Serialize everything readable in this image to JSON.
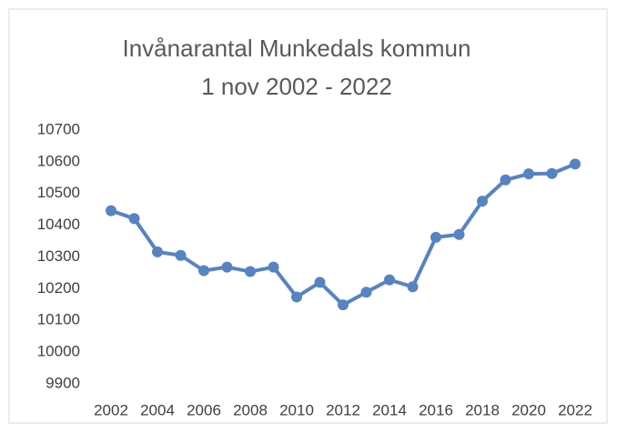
{
  "chart_data": {
    "type": "line",
    "title": [
      "Invånarantal  Munkedals kommun",
      "1 nov 2002 - 2022"
    ],
    "x": [
      2002,
      2003,
      2004,
      2005,
      2006,
      2007,
      2008,
      2009,
      2010,
      2011,
      2012,
      2013,
      2014,
      2015,
      2016,
      2017,
      2018,
      2019,
      2020,
      2021,
      2022
    ],
    "series": [
      {
        "color": "#5683c2",
        "values": [
          10446,
          10421,
          10316,
          10305,
          10257,
          10268,
          10254,
          10268,
          10174,
          10220,
          10149,
          10189,
          10228,
          10206,
          10362,
          10371,
          10476,
          10543,
          10562,
          10563,
          10593
        ]
      }
    ],
    "xlim": [
      2002,
      2022
    ],
    "xticks": [
      2002,
      2004,
      2006,
      2008,
      2010,
      2012,
      2014,
      2016,
      2018,
      2020,
      2022
    ],
    "ylim": [
      9900,
      10700
    ],
    "yticks": [
      9900,
      10000,
      10100,
      10200,
      10300,
      10400,
      10500,
      10600,
      10700
    ],
    "grid": false
  }
}
